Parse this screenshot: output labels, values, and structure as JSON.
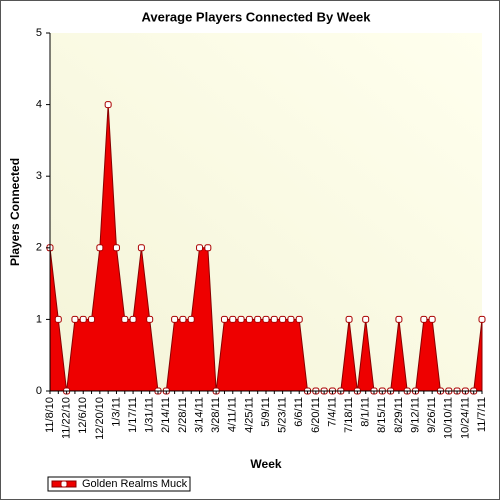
{
  "chart_data": {
    "type": "area",
    "title": "Average Players Connected By Week",
    "x_label": "Week",
    "y_label": "Players Connected",
    "categories": [
      "11/8/10",
      null,
      "11/22/10",
      null,
      "12/6/10",
      null,
      "12/20/10",
      null,
      "1/3/11",
      null,
      "1/17/11",
      null,
      "1/31/11",
      null,
      "2/14/11",
      null,
      "2/28/11",
      null,
      "3/14/11",
      null,
      "3/28/11",
      null,
      "4/11/11",
      null,
      "4/25/11",
      null,
      "5/9/11",
      null,
      "5/23/11",
      null,
      "6/6/11",
      null,
      "6/20/11",
      null,
      "7/4/11",
      null,
      "7/18/11",
      null,
      "8/1/11",
      null,
      "8/15/11",
      null,
      "8/29/11",
      null,
      "9/12/11",
      null,
      "9/26/11",
      null,
      "10/10/11",
      null,
      "10/24/11",
      null,
      "11/7/11"
    ],
    "series": [
      {
        "name": "Golden Realms Muck",
        "color": "#ee0000",
        "values": [
          2,
          1,
          0,
          1,
          1,
          1,
          2,
          4,
          2,
          1,
          1,
          2,
          1,
          0,
          0,
          1,
          1,
          1,
          2,
          2,
          0,
          1,
          1,
          1,
          1,
          1,
          1,
          1,
          1,
          1,
          1,
          0,
          0,
          0,
          0,
          0,
          1,
          0,
          1,
          0,
          0,
          0,
          1,
          0,
          0,
          1,
          1,
          0,
          0,
          0,
          0,
          0,
          1
        ]
      }
    ],
    "ylim": [
      0,
      5
    ],
    "yticks": [
      0,
      1,
      2,
      3,
      4,
      5
    ]
  }
}
